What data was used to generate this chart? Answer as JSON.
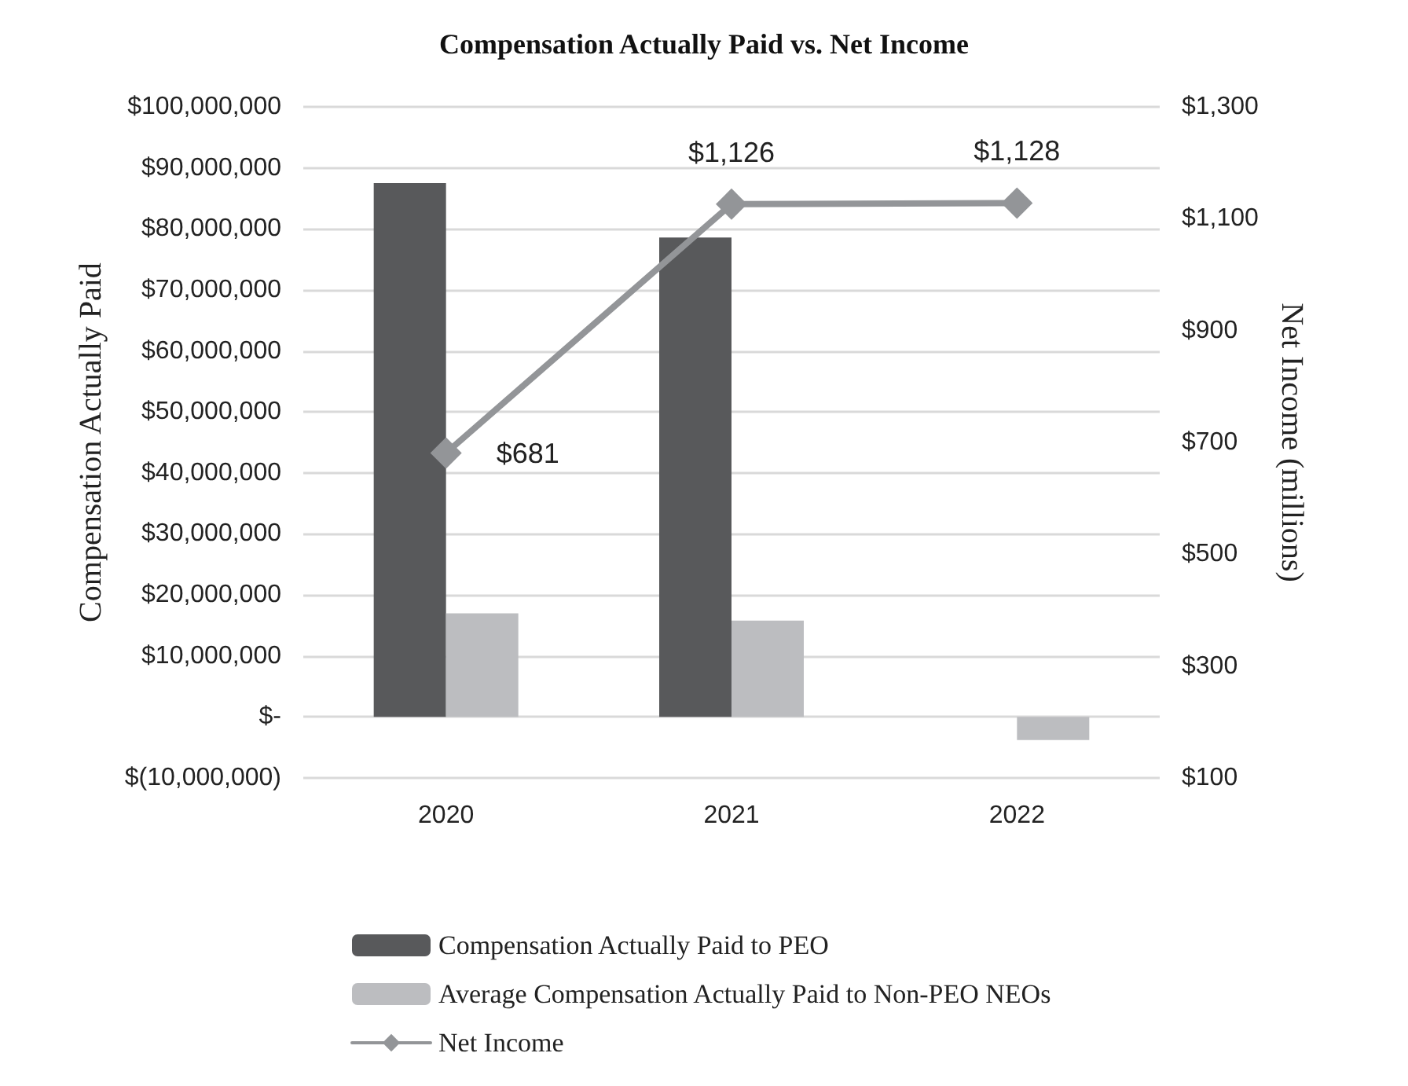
{
  "chart_data": {
    "type": "bar",
    "title": "Compensation Actually Paid vs. Net Income",
    "ylabel": "Compensation Actually Paid",
    "y2label": "Net Income (millions)",
    "categories": [
      "2020",
      "2021",
      "2022"
    ],
    "series": [
      {
        "name": "Compensation Actually Paid to PEO",
        "color": "#58595b",
        "values": [
          87500000,
          78600000,
          null
        ]
      },
      {
        "name": "Average Compensation Actually Paid to Non-PEO NEOs",
        "color": "#bcbdc0",
        "values": [
          17000000,
          15800000,
          -3800000
        ]
      },
      {
        "name": "Net Income",
        "type": "line",
        "axis": "y2",
        "color": "#939598",
        "marker": "diamond",
        "line_style": "solid",
        "values": [
          681,
          1126,
          1128
        ],
        "value_labels": [
          "$681",
          "$1,126",
          "$1,128"
        ]
      }
    ],
    "ylim": [
      -10000000,
      100000000
    ],
    "yticks": [
      {
        "value": -10000000,
        "label": "$(10,000,000)"
      },
      {
        "value": 0,
        "label": "$-"
      },
      {
        "value": 10000000,
        "label": "$10,000,000"
      },
      {
        "value": 20000000,
        "label": "$20,000,000"
      },
      {
        "value": 30000000,
        "label": "$30,000,000"
      },
      {
        "value": 40000000,
        "label": "$40,000,000"
      },
      {
        "value": 50000000,
        "label": "$50,000,000"
      },
      {
        "value": 60000000,
        "label": "$60,000,000"
      },
      {
        "value": 70000000,
        "label": "$70,000,000"
      },
      {
        "value": 80000000,
        "label": "$80,000,000"
      },
      {
        "value": 90000000,
        "label": "$90,000,000"
      },
      {
        "value": 100000000,
        "label": "$100,000,000"
      }
    ],
    "y2lim": [
      100,
      1300
    ],
    "y2ticks": [
      {
        "value": 100,
        "label": "$100"
      },
      {
        "value": 300,
        "label": "$300"
      },
      {
        "value": 500,
        "label": "$500"
      },
      {
        "value": 700,
        "label": "$700"
      },
      {
        "value": 900,
        "label": "$900"
      },
      {
        "value": 1100,
        "label": "$1,100"
      },
      {
        "value": 1300,
        "label": "$1,300"
      }
    ],
    "grid": "y",
    "legend": "bottom"
  }
}
